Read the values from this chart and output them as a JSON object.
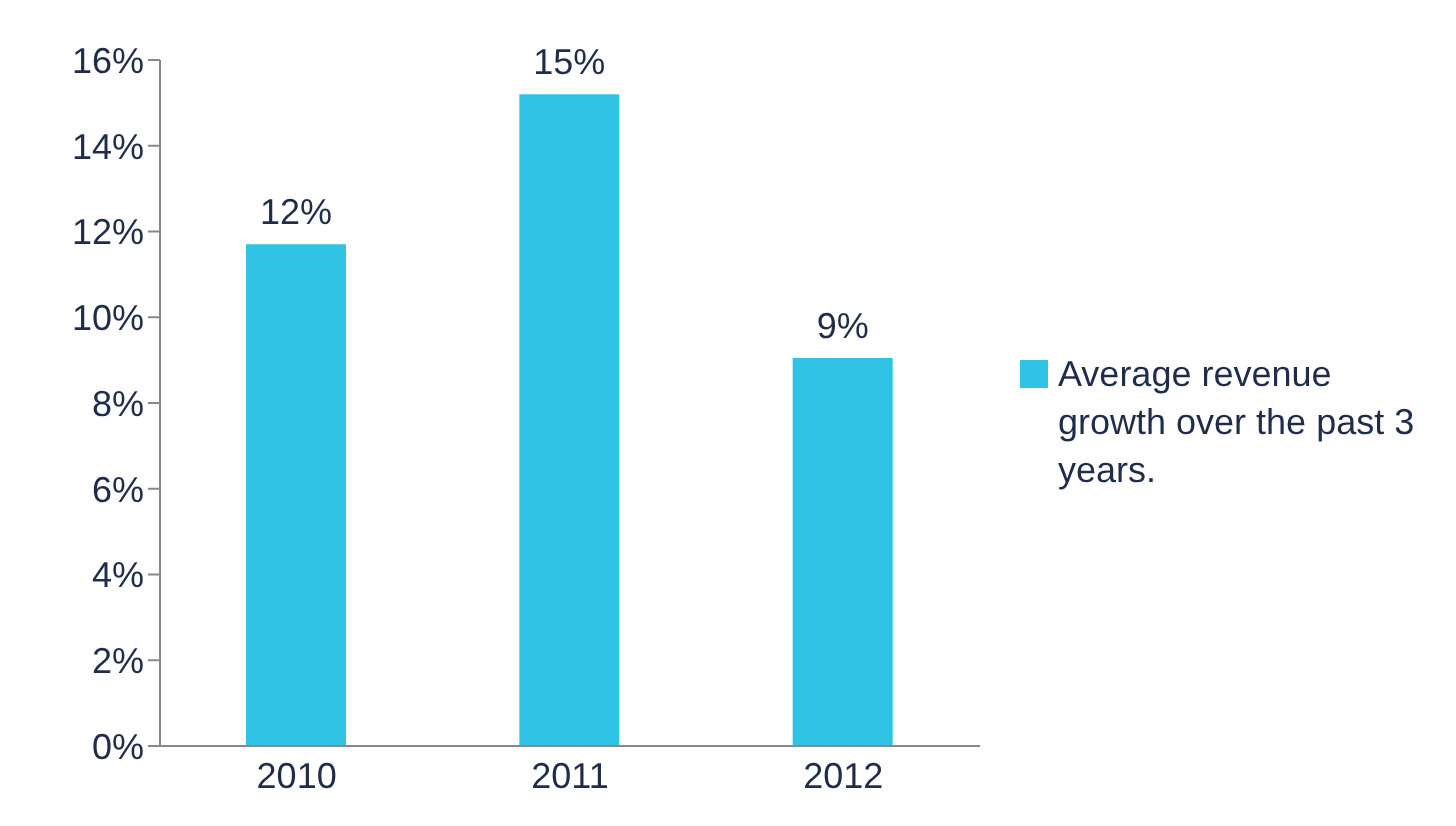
{
  "chart_data": {
    "type": "bar",
    "categories": [
      "2010",
      "2011",
      "2012"
    ],
    "series": [
      {
        "name": "Average revenue growth over the past 3 years.",
        "color": "#30c3e5",
        "values": [
          11.7,
          15.2,
          9.05
        ],
        "value_labels": [
          "12%",
          "15%",
          "9%"
        ]
      }
    ],
    "ylim": [
      0,
      16
    ],
    "yticks": [
      {
        "value": 0,
        "label": "0%"
      },
      {
        "value": 2,
        "label": "2%"
      },
      {
        "value": 4,
        "label": "4%"
      },
      {
        "value": 6,
        "label": "6%"
      },
      {
        "value": 8,
        "label": "8%"
      },
      {
        "value": 10,
        "label": "10%"
      },
      {
        "value": 12,
        "label": "12%"
      },
      {
        "value": 14,
        "label": "14%"
      },
      {
        "value": 16,
        "label": "16%"
      }
    ],
    "grid": false,
    "legend": "right"
  }
}
